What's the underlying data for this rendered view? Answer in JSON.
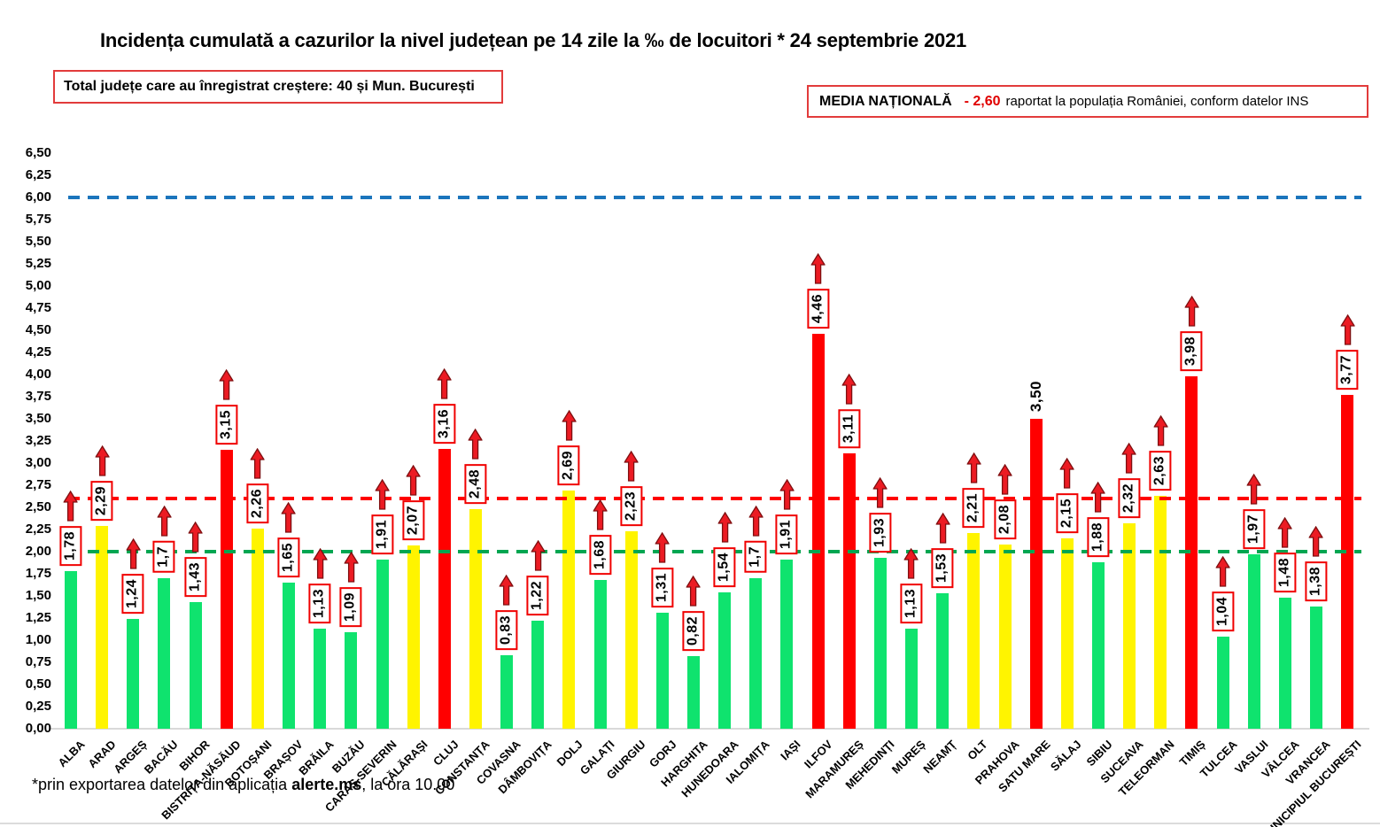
{
  "title": "Incidența cumulată a cazurilor la nivel județean pe 14 zile la ‰ de locuitori * 24 septembrie 2021",
  "info_box": {
    "text": "Total județe care au înregistrat creștere:  40 și Mun. București"
  },
  "national_average_box": {
    "label": "MEDIA NAȚIONALĂ",
    "value": "- 2,60",
    "note": "raportat la populația României, conform datelor INS"
  },
  "footer": {
    "prefix": "*prin exportarea datelor din aplicația ",
    "bold": "alerte.ms",
    "suffix": ", la ora 10.00"
  },
  "colors": {
    "bar_green": "#0fe36e",
    "bar_yellow": "#fff400",
    "bar_red": "#ff0000",
    "line_blue": "#1b75bc",
    "line_red": "#ff0000",
    "line_green": "#00a651",
    "box_border": "#f00000",
    "arrow_fill": "#ec1b23",
    "arrow_stroke": "#7f0f10"
  },
  "chart_data": {
    "type": "bar",
    "title": "Incidența cumulată a cazurilor la nivel județean pe 14 zile la ‰ de locuitori * 24 septembrie 2021",
    "xlabel": "",
    "ylabel": "",
    "ylim": [
      0,
      6.5
    ],
    "ytick_step": 0.25,
    "grid": false,
    "legend": "none",
    "decimal_separator": "comma",
    "reference_lines": [
      {
        "name": "upper-threshold-line",
        "value": 6.0,
        "color": "#1b75bc"
      },
      {
        "name": "national-average-line",
        "value": 2.6,
        "color": "#ff0000"
      },
      {
        "name": "alert-threshold-line",
        "value": 2.0,
        "color": "#00a651"
      }
    ],
    "categories": [
      "ALBA",
      "ARAD",
      "ARGEȘ",
      "BACĂU",
      "BIHOR",
      "BISTRIȚA-NĂSĂUD",
      "BOTOȘANI",
      "BRAȘOV",
      "BRĂILA",
      "BUZĂU",
      "CARAȘ-SEVERIN",
      "CĂLĂRAȘI",
      "CLUJ",
      "CONSTANȚA",
      "COVASNA",
      "DÂMBOVIȚA",
      "DOLJ",
      "GALAȚI",
      "GIURGIU",
      "GORJ",
      "HARGHITA",
      "HUNEDOARA",
      "IALOMIȚA",
      "IAȘI",
      "ILFOV",
      "MARAMUREȘ",
      "MEHEDINȚI",
      "MUREȘ",
      "NEAMȚ",
      "OLT",
      "PRAHOVA",
      "SATU MARE",
      "SĂLAJ",
      "SIBIU",
      "SUCEAVA",
      "TELEORMAN",
      "TIMIȘ",
      "TULCEA",
      "VASLUI",
      "VÂLCEA",
      "VRANCEA",
      "MUNICIPIUL BUCUREȘTI"
    ],
    "values": [
      1.78,
      2.29,
      1.24,
      1.7,
      1.43,
      3.15,
      2.26,
      1.65,
      1.13,
      1.09,
      1.91,
      2.07,
      3.16,
      2.48,
      0.83,
      1.22,
      2.69,
      1.68,
      2.23,
      1.31,
      0.82,
      1.54,
      1.7,
      1.91,
      4.46,
      3.11,
      1.93,
      1.13,
      1.53,
      2.21,
      2.08,
      3.5,
      2.15,
      1.88,
      2.32,
      2.63,
      3.98,
      1.04,
      1.97,
      1.48,
      1.38,
      3.77
    ],
    "value_labels": [
      "1,78",
      "2,29",
      "1,24",
      "1,7",
      "1,43",
      "3,15",
      "2,26",
      "1,65",
      "1,13",
      "1,09",
      "1,91",
      "2,07",
      "3,16",
      "2,48",
      "0,83",
      "1,22",
      "2,69",
      "1,68",
      "2,23",
      "1,31",
      "0,82",
      "1,54",
      "1,7",
      "1,91",
      "4,46",
      "3,11",
      "1,93",
      "1,13",
      "1,53",
      "2,21",
      "2,08",
      "3,50",
      "2,15",
      "1,88",
      "2,32",
      "2,63",
      "3,98",
      "1,04",
      "1,97",
      "1,48",
      "1,38",
      "3,77"
    ],
    "bar_colors": [
      "green",
      "yellow",
      "green",
      "green",
      "green",
      "red",
      "yellow",
      "green",
      "green",
      "green",
      "green",
      "yellow",
      "red",
      "yellow",
      "green",
      "green",
      "yellow",
      "green",
      "yellow",
      "green",
      "green",
      "green",
      "green",
      "green",
      "red",
      "red",
      "green",
      "green",
      "green",
      "yellow",
      "yellow",
      "red",
      "yellow",
      "green",
      "yellow",
      "yellow",
      "red",
      "green",
      "green",
      "green",
      "green",
      "red"
    ],
    "increase_arrow": [
      true,
      true,
      true,
      true,
      true,
      true,
      true,
      true,
      true,
      true,
      true,
      true,
      true,
      true,
      true,
      true,
      true,
      true,
      true,
      true,
      true,
      true,
      true,
      true,
      true,
      true,
      true,
      true,
      true,
      true,
      true,
      false,
      true,
      true,
      true,
      true,
      true,
      true,
      true,
      true,
      true,
      true
    ],
    "boxed_label": [
      true,
      true,
      true,
      true,
      true,
      true,
      true,
      true,
      true,
      true,
      true,
      true,
      true,
      true,
      true,
      true,
      true,
      true,
      true,
      true,
      true,
      true,
      true,
      true,
      true,
      true,
      true,
      true,
      true,
      true,
      true,
      false,
      true,
      true,
      true,
      true,
      true,
      true,
      true,
      true,
      true,
      true
    ]
  }
}
